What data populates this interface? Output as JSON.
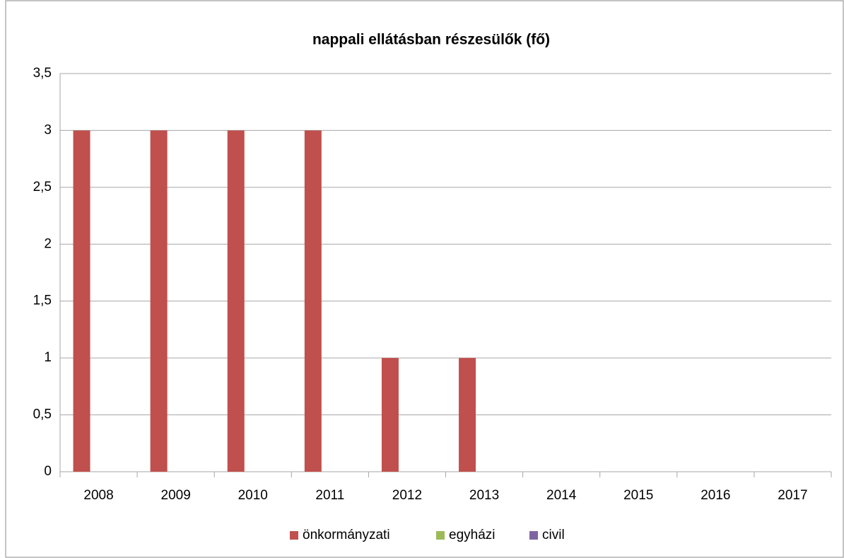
{
  "chart_data": {
    "type": "bar",
    "title": "nappali ellátásban részesülők (fő)",
    "categories": [
      "2008",
      "2009",
      "2010",
      "2011",
      "2012",
      "2013",
      "2014",
      "2015",
      "2016",
      "2017"
    ],
    "series": [
      {
        "name": "önkormányzati",
        "color": "#c0504d",
        "values": [
          3,
          3,
          3,
          3,
          1,
          1,
          0,
          0,
          0,
          0
        ]
      },
      {
        "name": "egyházi",
        "color": "#9bbb59",
        "values": [
          0,
          0,
          0,
          0,
          0,
          0,
          0,
          0,
          0,
          0
        ]
      },
      {
        "name": "civil",
        "color": "#8064a2",
        "values": [
          0,
          0,
          0,
          0,
          0,
          0,
          0,
          0,
          0,
          0
        ]
      }
    ],
    "ylim": [
      0,
      3.5
    ],
    "yticks": [
      0,
      {
        "value": 0.5,
        "label": "0,5"
      },
      1,
      {
        "value": 1.5,
        "label": "1,5"
      },
      2,
      {
        "value": 2.5,
        "label": "2,5"
      },
      3,
      {
        "value": 3.5,
        "label": "3,5"
      }
    ],
    "grid": true,
    "legend": "bottom"
  }
}
